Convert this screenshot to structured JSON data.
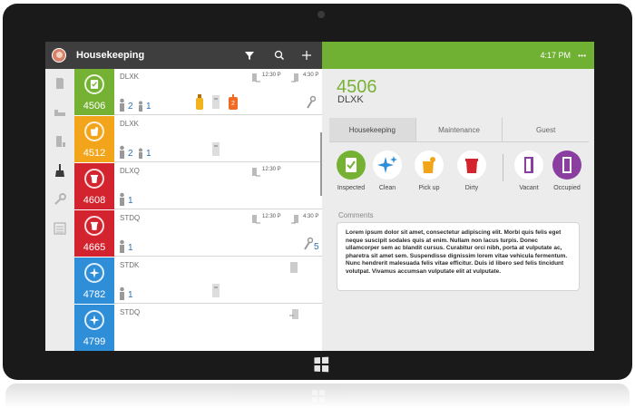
{
  "app": {
    "title": "Housekeeping",
    "time": "4:17",
    "time_suffix": "PM"
  },
  "rooms": [
    {
      "number": "4506",
      "type": "DLXK",
      "color": "#75b234",
      "status": "clean-check",
      "time_out": "12:30",
      "time_in": "4:30",
      "adults": "2",
      "children": "1",
      "extra_count": "2"
    },
    {
      "number": "4512",
      "type": "DLXK",
      "color": "#f2a41b",
      "status": "pickup",
      "adults": "2",
      "children": "1"
    },
    {
      "number": "4608",
      "type": "DLXQ",
      "color": "#d3232f",
      "status": "dirty",
      "time_out": "12:30",
      "adults": "1"
    },
    {
      "number": "4665",
      "type": "STDQ",
      "color": "#d3232f",
      "status": "dirty",
      "time_out": "12:30",
      "time_in": "4:30",
      "adults": "1",
      "maintenance_count": "5"
    },
    {
      "number": "4782",
      "type": "STDK",
      "color": "#2f8ed8",
      "status": "clean",
      "adults": "1"
    },
    {
      "number": "4799",
      "type": "STDQ",
      "color": "#2f8ed8",
      "status": "clean"
    }
  ],
  "detail": {
    "number": "4506",
    "type": "DLXK",
    "tabs": [
      "Housekeeping",
      "Maintenance",
      "Guest"
    ],
    "statuses": [
      {
        "label": "Inspected",
        "color": "#75b234"
      },
      {
        "label": "Clean",
        "color": "#2f8ed8"
      },
      {
        "label": "Pick up",
        "color": "#f2a41b"
      },
      {
        "label": "Dirty",
        "color": "#d3232f"
      },
      {
        "label": "Vacant",
        "color": "#8a3fa0"
      },
      {
        "label": "Occupied",
        "color": "#8a3fa0"
      }
    ],
    "comments_label": "Comments",
    "comments": "Lorem ipsum dolor sit amet, consectetur adipiscing elit. Morbi quis felis eget neque suscipit sodales quis at enim. Nullam non lacus turpis. Donec ullamcorper sem ac blandit cursus. Curabitur orci nibh, porta at vulputate ac, pharetra sit amet sem. Suspendisse dignissim lorem vitae vehicula fermentum. Nunc hendrerit malesuada felis vitae efficitur. Duis id libero sed felis tincidunt volutpat. Vivamus accumsan vulputate elit at vulputate."
  }
}
